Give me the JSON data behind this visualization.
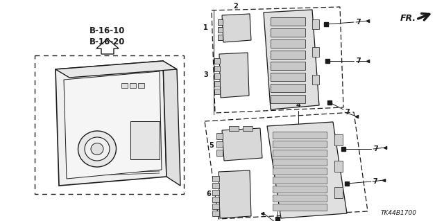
{
  "bg_color": "#ffffff",
  "line_color": "#1a1a1a",
  "part_code": "TK44B1700",
  "ref_text": "B-16-10\nB-16-20"
}
